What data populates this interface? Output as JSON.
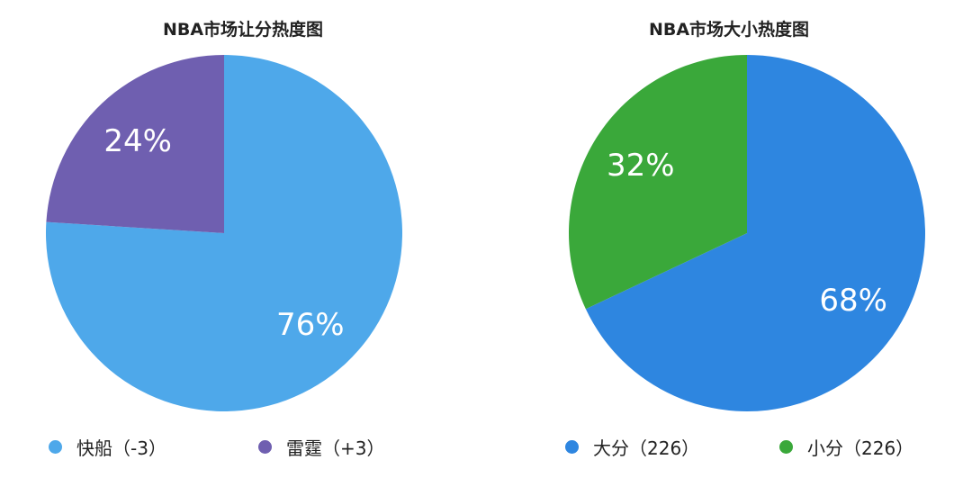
{
  "colors": {
    "blue_light": "#4ea8ea",
    "purple": "#6f5fb0",
    "blue": "#2e86e0",
    "green": "#3aa83a"
  },
  "chart_data": [
    {
      "type": "pie",
      "title": "NBA市场让分热度图",
      "slices": [
        {
          "label": "快船（-3）",
          "value": 76,
          "display": "76%",
          "color": "#4ea8ea"
        },
        {
          "label": "雷霆（+3）",
          "value": 24,
          "display": "24%",
          "color": "#6f5fb0"
        }
      ],
      "legend_position": "bottom"
    },
    {
      "type": "pie",
      "title": "NBA市场大小热度图",
      "slices": [
        {
          "label": "大分（226）",
          "value": 68,
          "display": "68%",
          "color": "#2e86e0"
        },
        {
          "label": "小分（226）",
          "value": 32,
          "display": "32%",
          "color": "#3aa83a"
        }
      ],
      "legend_position": "bottom"
    }
  ]
}
